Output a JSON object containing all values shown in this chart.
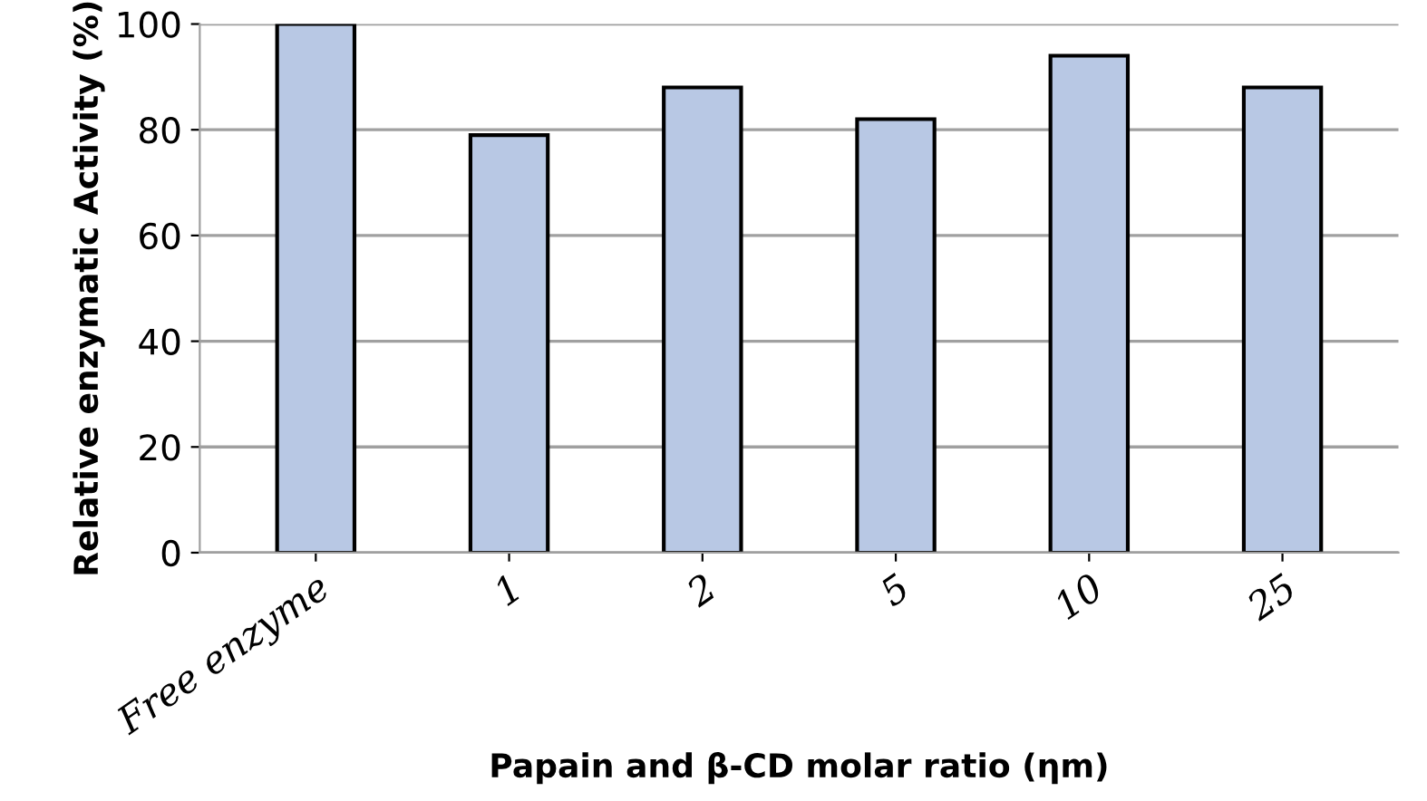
{
  "chart_data": {
    "type": "bar",
    "categories": [
      "Free enzyme",
      "1",
      "2",
      "5",
      "10",
      "25"
    ],
    "values": [
      100,
      79,
      88,
      82,
      94,
      88
    ],
    "color": "#b8c8e4",
    "xlabel": "Papain and β-CD molar ratio (ηm)",
    "ylabel": "Relative enzymatic Activity (%)",
    "ylim": [
      0,
      100
    ],
    "yticks": [
      0,
      20,
      40,
      60,
      80,
      100
    ],
    "grid": "y"
  }
}
